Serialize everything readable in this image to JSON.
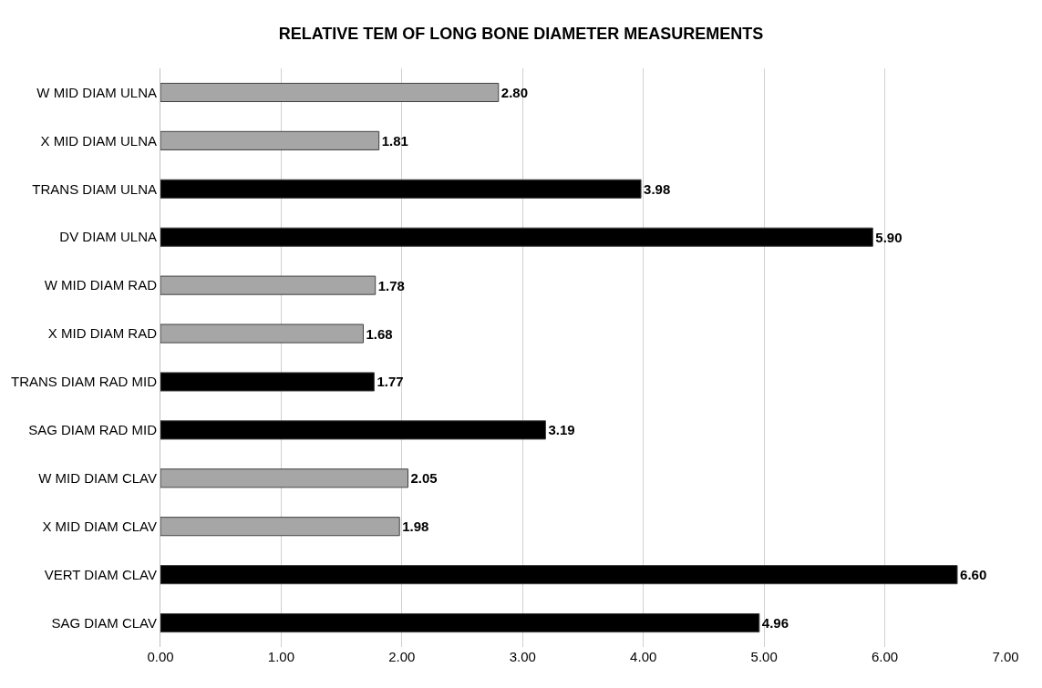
{
  "chart_data": {
    "type": "bar",
    "orientation": "horizontal",
    "title": "RELATIVE TEM OF LONG BONE DIAMETER MEASUREMENTS",
    "categories": [
      "W MID DIAM ULNA",
      "X MID DIAM ULNA",
      "TRANS DIAM ULNA",
      "DV DIAM ULNA",
      "W MID DIAM RAD",
      "X MID DIAM RAD",
      "TRANS DIAM RAD MID",
      "SAG DIAM RAD MID",
      "W MID DIAM CLAV",
      "X MID DIAM CLAV",
      "VERT DIAM CLAV",
      "SAG DIAM CLAV"
    ],
    "values": [
      2.8,
      1.81,
      3.98,
      5.9,
      1.78,
      1.68,
      1.77,
      3.19,
      2.05,
      1.98,
      6.6,
      4.96
    ],
    "value_labels": [
      "2.80",
      "1.81",
      "3.98",
      "5.90",
      "1.78",
      "1.68",
      "1.77",
      "3.19",
      "2.05",
      "1.98",
      "6.60",
      "4.96"
    ],
    "colors": [
      "#a6a6a6",
      "#a6a6a6",
      "#000000",
      "#000000",
      "#a6a6a6",
      "#a6a6a6",
      "#000000",
      "#000000",
      "#a6a6a6",
      "#a6a6a6",
      "#000000",
      "#000000"
    ],
    "xlim": [
      0,
      7
    ],
    "xticks": [
      {
        "value": 0,
        "label": "0.00"
      },
      {
        "value": 1,
        "label": "1.00"
      },
      {
        "value": 2,
        "label": "2.00"
      },
      {
        "value": 3,
        "label": "3.00"
      },
      {
        "value": 4,
        "label": "4.00"
      },
      {
        "value": 5,
        "label": "5.00"
      },
      {
        "value": 6,
        "label": "6.00"
      },
      {
        "value": 7,
        "label": "7.00"
      }
    ],
    "grid": "x"
  }
}
